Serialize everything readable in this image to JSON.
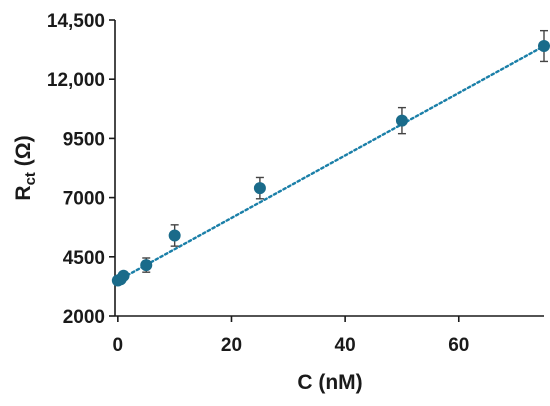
{
  "chart_data": {
    "type": "scatter",
    "xlabel": "C (nM)",
    "ylabel_main": "R",
    "ylabel_sub": "ct",
    "ylabel_unit": " (Ω)",
    "x_ticks": [
      "0",
      "20",
      "40",
      "60"
    ],
    "x_tick_values": [
      0,
      20,
      40,
      60
    ],
    "y_ticks": [
      "2000",
      "4500",
      "7000",
      "9500",
      "12,000",
      "14,500"
    ],
    "y_tick_values": [
      2000,
      4500,
      7000,
      9500,
      12000,
      14500
    ],
    "xlim": [
      -0.5,
      75
    ],
    "ylim": [
      2000,
      14500
    ],
    "grid": false,
    "series": [
      {
        "x": [
          0,
          0.5,
          1,
          5,
          10,
          25,
          50,
          75
        ],
        "y": [
          3500,
          3550,
          3700,
          4150,
          5400,
          7400,
          10250,
          13400
        ],
        "err": [
          120,
          120,
          150,
          300,
          450,
          450,
          550,
          650
        ]
      }
    ],
    "trendline": {
      "x": [
        0,
        75
      ],
      "y": [
        3500,
        13400
      ],
      "style": "dotted"
    },
    "marker_color": "#1a6b8a",
    "trend_color": "#1a7fa8"
  }
}
